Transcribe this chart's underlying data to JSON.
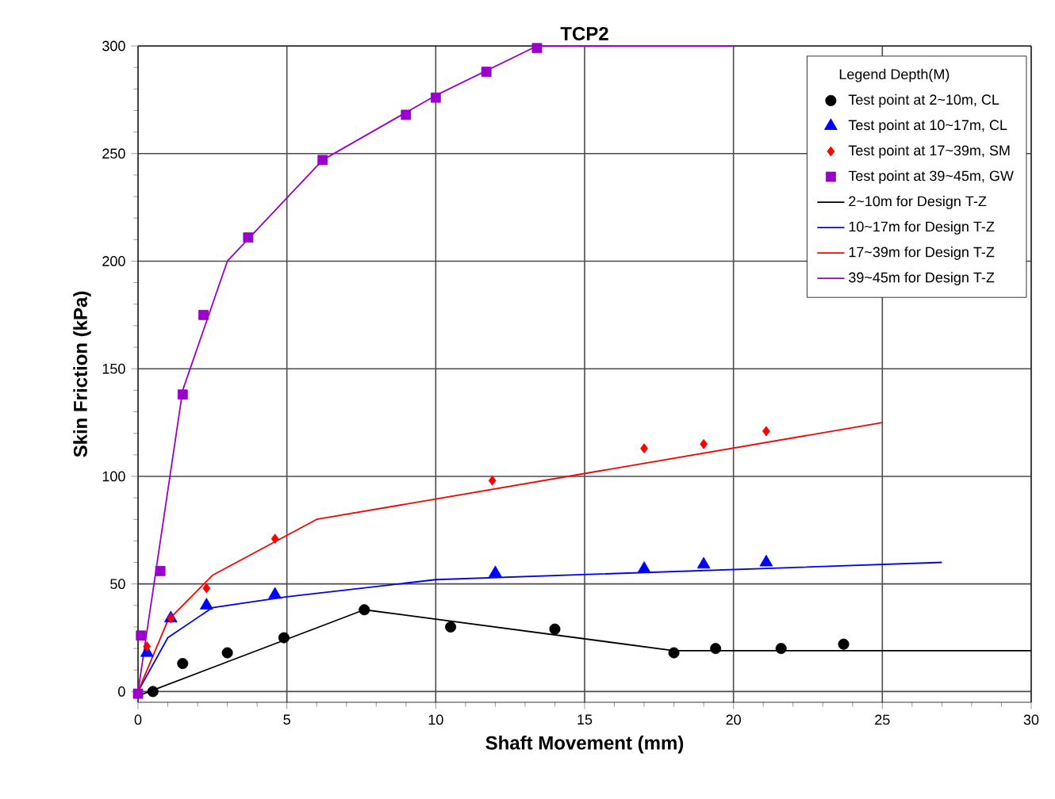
{
  "chart_data": {
    "type": "line",
    "title": "TCP2",
    "xlabel": "Shaft Movement (mm)",
    "ylabel": "Skin Friction (kPa)",
    "legend_title": "Legend      Depth(M)",
    "xlim": [
      0,
      30
    ],
    "ylim": [
      -5,
      300
    ],
    "xticks": [
      0,
      5,
      10,
      15,
      20,
      25,
      30
    ],
    "yticks": [
      0,
      50,
      100,
      150,
      200,
      250,
      300
    ],
    "grid": true,
    "legend": "top right",
    "series": [
      {
        "type": "scatter",
        "name": "Test point at   2~10m, CL",
        "color": "#000000",
        "marker": "circle",
        "x": [
          0.5,
          1.5,
          3,
          4.9,
          7.6,
          10.5,
          14,
          18,
          19.4,
          21.6,
          23.7
        ],
        "values": [
          0,
          13,
          18,
          25,
          38,
          30,
          29,
          18,
          20,
          20,
          22
        ]
      },
      {
        "type": "scatter",
        "name": "Test point at 10~17m, CL",
        "color": "#0000ff",
        "marker": "triangle",
        "x": [
          0.3,
          1.1,
          2.3,
          4.6,
          12,
          17,
          19,
          21.1
        ],
        "values": [
          18,
          34,
          40,
          45,
          55,
          57,
          59,
          60
        ]
      },
      {
        "type": "scatter",
        "name": "Test point at 17~39m, SM",
        "color": "#ff0000",
        "marker": "diamond",
        "x": [
          0.3,
          1.1,
          2.3,
          4.6,
          11.9,
          17,
          19,
          21.1
        ],
        "values": [
          21,
          34,
          48,
          71,
          98,
          113,
          115,
          121
        ]
      },
      {
        "type": "scatter",
        "name": "Test point at 39~45m, GW",
        "color": "#9900cc",
        "marker": "square",
        "x": [
          0,
          0.1,
          0.75,
          1.5,
          2.2,
          3.7,
          6.2,
          9,
          10,
          11.7,
          13.4
        ],
        "values": [
          -1,
          26,
          56,
          138,
          175,
          211,
          247,
          268,
          276,
          288,
          299
        ]
      },
      {
        "type": "line",
        "name": "2~10m for Design T-Z",
        "color": "#000000",
        "marker": "none",
        "x": [
          0,
          7.6,
          18,
          30
        ],
        "values": [
          -2,
          38,
          19,
          19
        ]
      },
      {
        "type": "line",
        "name": "10~17m for Design T-Z",
        "color": "#0000ff",
        "marker": "none",
        "x": [
          0,
          1,
          2.5,
          5,
          10,
          27
        ],
        "values": [
          0,
          25,
          39,
          44,
          52,
          60
        ]
      },
      {
        "type": "line",
        "name": "17~39m for Design T-Z",
        "color": "#ff0000",
        "marker": "none",
        "x": [
          0,
          1,
          2.5,
          6,
          25
        ],
        "values": [
          0,
          33,
          54,
          80,
          125
        ]
      },
      {
        "type": "line",
        "name": "39~45m for Design T-Z",
        "color": "#9900cc",
        "marker": "none",
        "x": [
          0,
          1.5,
          3,
          6.2,
          10,
          13.4,
          20
        ],
        "values": [
          0,
          140,
          200,
          247,
          277,
          300,
          300
        ]
      }
    ]
  }
}
